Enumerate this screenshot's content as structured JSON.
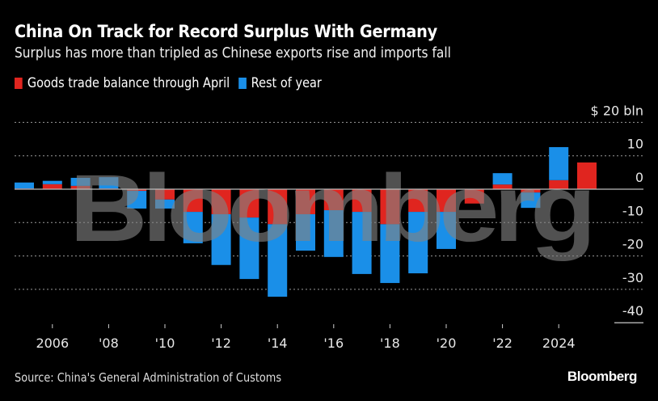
{
  "title": "China On Track for Record Surplus With Germany",
  "subtitle": "Surplus has more than tripled as Chinese exports rise and imports fall",
  "source": "Source: China's General Administration of Customs",
  "brand": "Bloomberg",
  "watermark": "Bloomberg",
  "colors": {
    "background": "#000000",
    "through_april": "#e0251f",
    "rest_of_year": "#1a8fe8",
    "grid": "#9a9a9a",
    "text": "#ffffff"
  },
  "chart_data": {
    "type": "bar",
    "stacked": true,
    "title": "China On Track for Record Surplus With Germany",
    "subtitle": "Surplus has more than tripled as Chinese exports rise and imports fall",
    "xlabel": "",
    "ylabel": "$ bln",
    "unit_label": "$20 bln",
    "ylim": [
      -40,
      20
    ],
    "yticks": [
      20,
      10,
      0,
      -10,
      -20,
      -30,
      -40
    ],
    "ytick_labels": [
      "$ 20 bln",
      "10",
      "0",
      "-10",
      "-20",
      "-30",
      "-40"
    ],
    "grid": true,
    "legend_position": "top-left",
    "categories": [
      2005,
      2006,
      2007,
      2008,
      2009,
      2010,
      2011,
      2012,
      2013,
      2014,
      2015,
      2016,
      2017,
      2018,
      2019,
      2020,
      2021,
      2022,
      2023,
      2024,
      2025
    ],
    "xtick_values": [
      2006,
      2008,
      2010,
      2012,
      2014,
      2016,
      2018,
      2020,
      2022,
      2024
    ],
    "xtick_labels": [
      "2006",
      "'08",
      "'10",
      "'12",
      "'14",
      "'16",
      "'18",
      "'20",
      "'22",
      "2024"
    ],
    "series": [
      {
        "name": "Goods trade balance through April",
        "color": "#e0251f",
        "values": [
          0.2,
          1.5,
          1.0,
          0.2,
          -0.5,
          -3.1,
          -6.8,
          -7.5,
          -8.5,
          -10.5,
          -7.5,
          -6.3,
          -6.8,
          -10.5,
          -6.8,
          -6.8,
          -4.3,
          1.4,
          -1.0,
          2.7,
          8.0
        ]
      },
      {
        "name": "Rest of year",
        "color": "#1a8fe8",
        "values": [
          1.8,
          1.0,
          2.4,
          3.4,
          -5.3,
          -2.7,
          -9.4,
          -15.2,
          -18.4,
          -21.7,
          -10.9,
          -14.0,
          -18.6,
          -17.6,
          -18.4,
          -11.1,
          0,
          3.4,
          -4.6,
          9.9,
          null
        ]
      }
    ]
  }
}
